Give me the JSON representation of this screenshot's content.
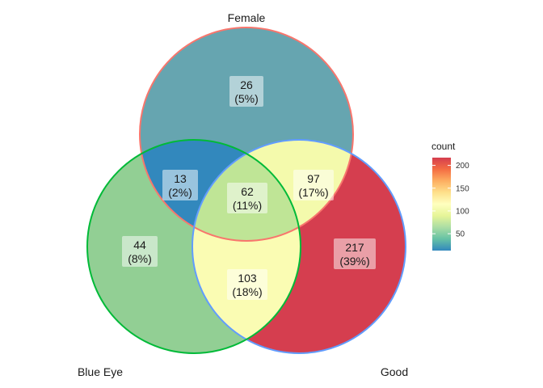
{
  "sets": [
    {
      "key": "female",
      "name": "Female",
      "edge_color": "#F8766D"
    },
    {
      "key": "blue_eye",
      "name": "Blue Eye",
      "edge_color": "#00BA38"
    },
    {
      "key": "good",
      "name": "Good",
      "edge_color": "#619CFF"
    }
  ],
  "regions": [
    {
      "key": "female_only",
      "sets": [
        "female"
      ],
      "count": "26",
      "percent": "(5%)",
      "value": 26,
      "fill": "#66A5B0"
    },
    {
      "key": "female_blue",
      "sets": [
        "female",
        "blue_eye"
      ],
      "count": "13",
      "percent": "(2%)",
      "value": 13,
      "fill": "#3288BD"
    },
    {
      "key": "female_good",
      "sets": [
        "female",
        "good"
      ],
      "count": "97",
      "percent": "(17%)",
      "value": 97,
      "fill": "#F4FAAC"
    },
    {
      "key": "all_three",
      "sets": [
        "female",
        "blue_eye",
        "good"
      ],
      "count": "62",
      "percent": "(11%)",
      "value": 62,
      "fill": "#BFE596"
    },
    {
      "key": "blue_only",
      "sets": [
        "blue_eye"
      ],
      "count": "44",
      "percent": "(8%)",
      "value": 44,
      "fill": "#92CF94"
    },
    {
      "key": "blue_good",
      "sets": [
        "blue_eye",
        "good"
      ],
      "count": "103",
      "percent": "(18%)",
      "value": 103,
      "fill": "#FAFCB3"
    },
    {
      "key": "good_only",
      "sets": [
        "good"
      ],
      "count": "217",
      "percent": "(39%)",
      "value": 217,
      "fill": "#D53E4F"
    }
  ],
  "legend": {
    "title": "count",
    "ticks": [
      "50",
      "100",
      "150",
      "200"
    ],
    "tick_values": [
      50,
      100,
      150,
      200
    ],
    "min": 13,
    "max": 217,
    "palette": [
      "#3288BD",
      "#66C2A5",
      "#ABDDA4",
      "#E6F598",
      "#FFFFBF",
      "#FEE08B",
      "#FDAE61",
      "#F46D43",
      "#D53E4F"
    ]
  }
}
